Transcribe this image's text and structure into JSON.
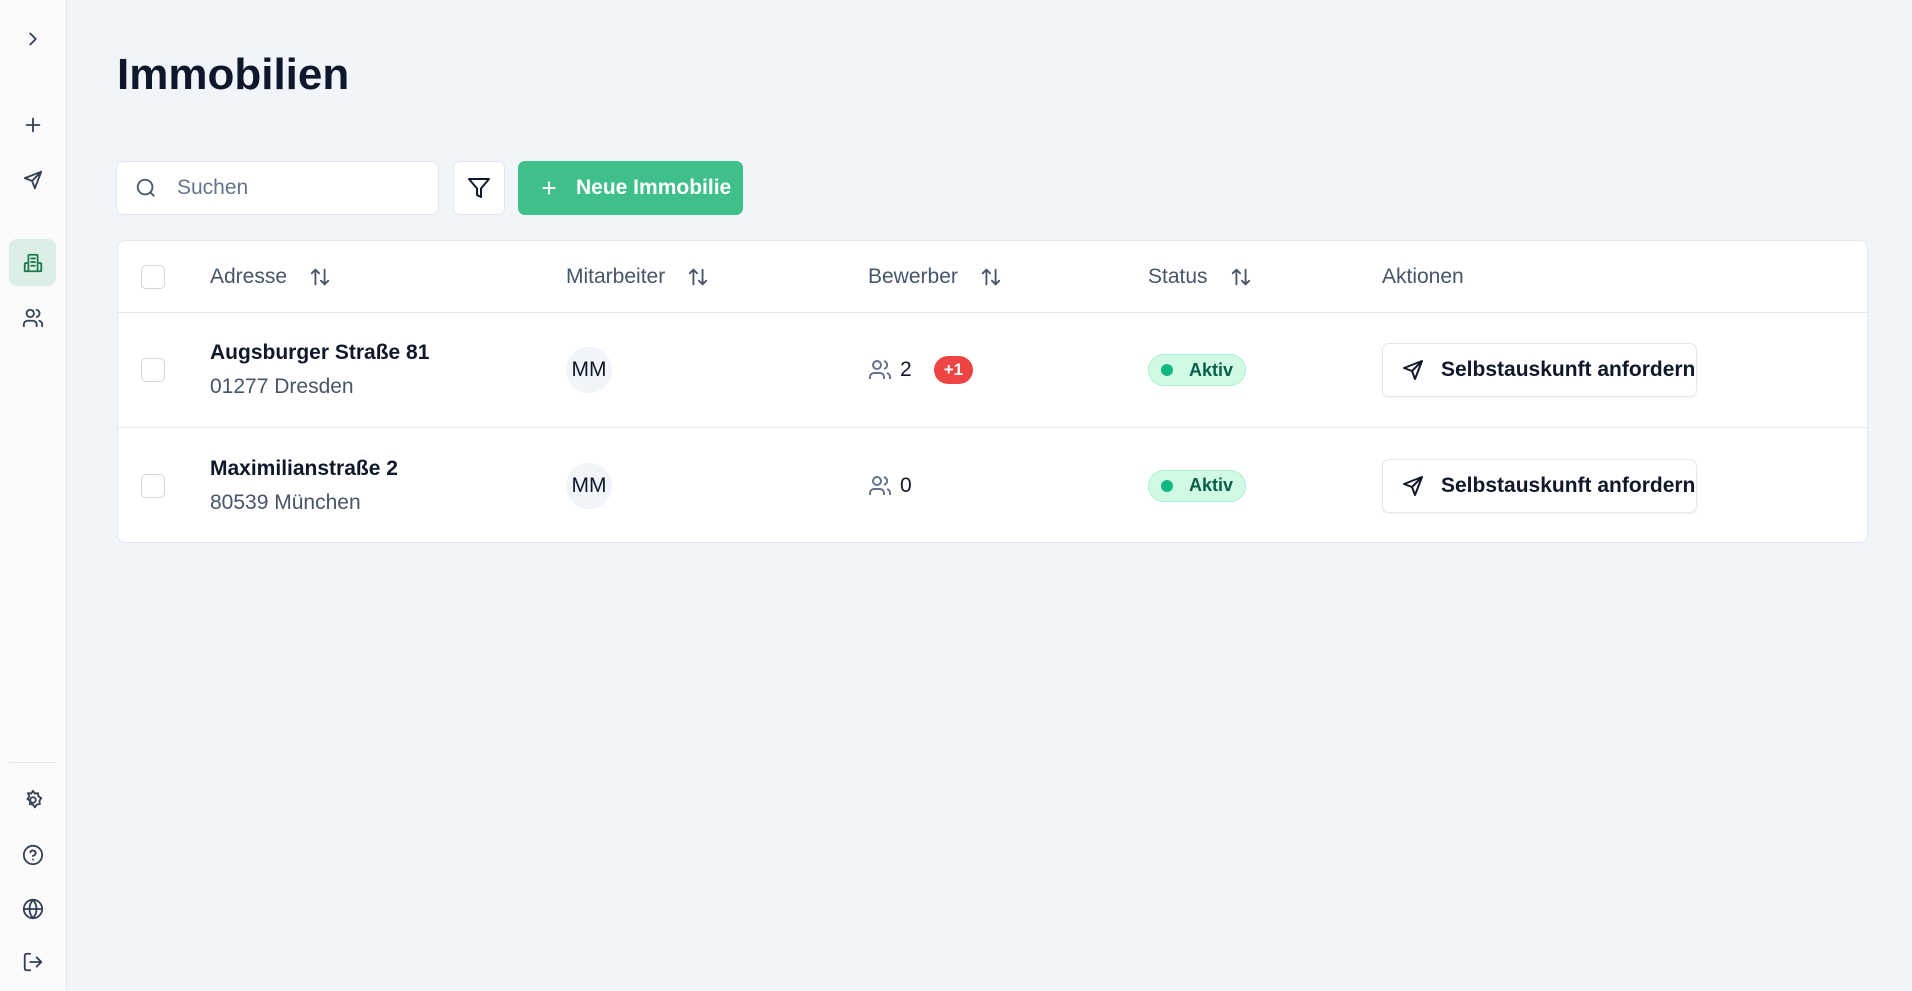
{
  "sidebar": {
    "items": [
      {
        "icon": "chevron-right-icon"
      },
      {
        "icon": "plus-icon"
      },
      {
        "icon": "send-icon"
      },
      {
        "icon": "building-icon",
        "active": true
      },
      {
        "icon": "users-icon"
      },
      {
        "icon": "gear-icon"
      },
      {
        "icon": "help-icon"
      },
      {
        "icon": "globe-icon"
      },
      {
        "icon": "logout-icon"
      }
    ]
  },
  "page": {
    "title": "Immobilien"
  },
  "toolbar": {
    "search_placeholder": "Suchen",
    "search_value": "",
    "new_label": "Neue Immobilie"
  },
  "table": {
    "headers": {
      "address": "Adresse",
      "employee": "Mitarbeiter",
      "applicants": "Bewerber",
      "status": "Status",
      "actions": "Aktionen"
    },
    "rows": [
      {
        "street": "Augsburger Straße 81",
        "city": "01277 Dresden",
        "employee": "MM",
        "applicants": "2",
        "new_badge": "+1",
        "status": "Aktiv",
        "action": "Selbstauskunft anfordern"
      },
      {
        "street": "Maximilianstraße 2",
        "city": "80539 München",
        "employee": "MM",
        "applicants": "0",
        "status": "Aktiv",
        "action": "Selbstauskunft anfordern"
      }
    ]
  },
  "colors": {
    "accent": "#3fbf8a",
    "badge": "#ef4444",
    "status_bg": "#d1fae5"
  }
}
